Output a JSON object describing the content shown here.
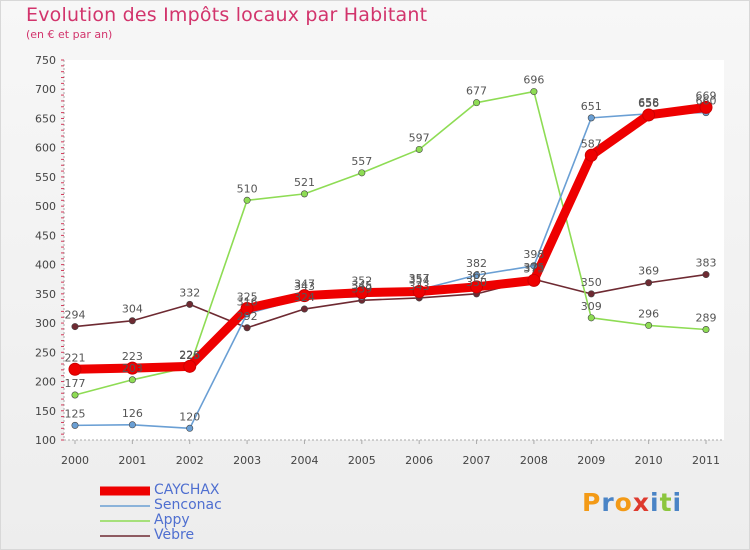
{
  "chart_data": {
    "type": "line",
    "title": "Evolution des Impôts locaux par Habitant",
    "subtitle": "(en € et par an)",
    "xlabel": "",
    "ylabel": "",
    "categories": [
      "2000",
      "2001",
      "2002",
      "2003",
      "2004",
      "2005",
      "2006",
      "2007",
      "2008",
      "2009",
      "2010",
      "2011"
    ],
    "ylim": [
      100,
      750
    ],
    "yticks": [
      100,
      150,
      200,
      250,
      300,
      350,
      400,
      450,
      500,
      550,
      600,
      650,
      700,
      750
    ],
    "grid": false,
    "legend_position": "bottom-left",
    "series": [
      {
        "name": "Vèbre",
        "color": "#6e2a32",
        "labels": true,
        "values": [
          294,
          304,
          332,
          292,
          324,
          339,
          343,
          350,
          375,
          350,
          369,
          383
        ]
      },
      {
        "name": "Appy",
        "color": "#8edc54",
        "labels": true,
        "values": [
          177,
          203,
          225,
          510,
          521,
          557,
          597,
          677,
          696,
          309,
          296,
          289
        ]
      },
      {
        "name": "Senconac",
        "color": "#6a9fd4",
        "labels": true,
        "values": [
          125,
          126,
          120,
          316,
          343,
          345,
          357,
          382,
          398,
          651,
          658,
          660
        ]
      },
      {
        "name": "CAYCHAX",
        "color": "#ee0000",
        "labels": true,
        "values": [
          221,
          223,
          226,
          325,
          347,
          352,
          354,
          362,
          373,
          587,
          656,
          669
        ]
      }
    ]
  },
  "legend": {
    "items": [
      {
        "name": "CAYCHAX",
        "color": "#ee0000"
      },
      {
        "name": "Senconac",
        "color": "#6a9fd4"
      },
      {
        "name": "Appy",
        "color": "#8edc54"
      },
      {
        "name": "Vèbre",
        "color": "#6e2a32"
      }
    ]
  },
  "logo": {
    "text": "Proxiti",
    "letter_colors": [
      "#f39a16",
      "#4a84c6",
      "#f39a16",
      "#de3a2e",
      "#4a84c6",
      "#8cc63e",
      "#4a84c6"
    ]
  }
}
